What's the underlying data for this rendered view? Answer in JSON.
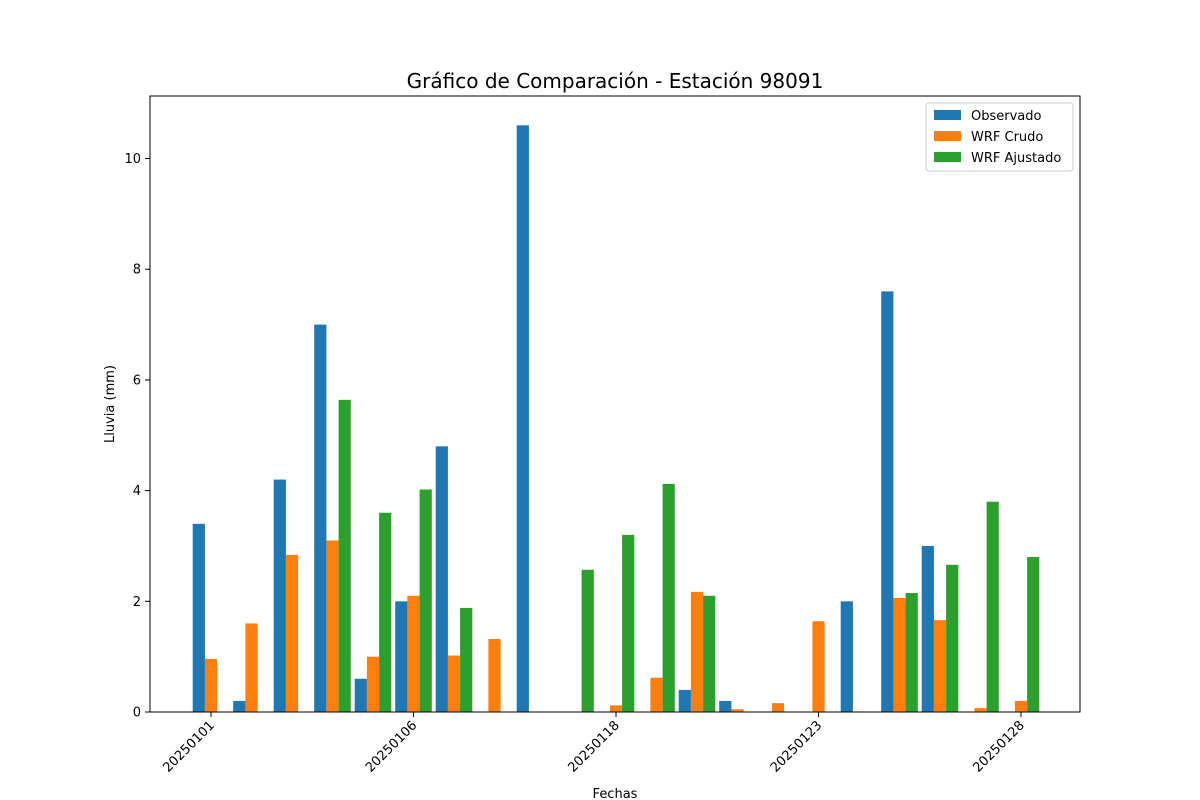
{
  "chart_data": {
    "type": "bar",
    "title": "Gráfico de Comparación - Estación 98091",
    "xlabel": "Fechas",
    "ylabel": "Lluvia (mm)",
    "ylim": [
      0,
      11.13
    ],
    "yticks": [
      0,
      2,
      4,
      6,
      8,
      10
    ],
    "xticks": [
      {
        "index": 0,
        "label": "20250101"
      },
      {
        "index": 5,
        "label": "20250106"
      },
      {
        "index": 10,
        "label": "20250118"
      },
      {
        "index": 15,
        "label": "20250123"
      },
      {
        "index": 20,
        "label": "20250128"
      }
    ],
    "legend_position": "top-right",
    "grid": false,
    "series": [
      {
        "name": "Observado",
        "color": "#1f77b4",
        "values": [
          3.4,
          0.2,
          4.2,
          7.0,
          0.6,
          2.0,
          4.8,
          0.0,
          10.6,
          0.0,
          0.0,
          0.0,
          0.4,
          0.2,
          0.0,
          0.0,
          2.0,
          7.6,
          3.0,
          0.0,
          0.0,
          0.0
        ]
      },
      {
        "name": "WRF Crudo",
        "color": "#ff7f0e",
        "values": [
          0.96,
          1.6,
          2.84,
          3.1,
          1.0,
          2.1,
          1.02,
          1.32,
          0.0,
          0.0,
          0.12,
          0.62,
          2.17,
          0.05,
          0.16,
          1.64,
          0.01,
          2.06,
          1.66,
          0.07,
          0.2,
          0.0
        ]
      },
      {
        "name": "WRF Ajustado",
        "color": "#2ca02c",
        "values": [
          0.0,
          0.0,
          0.0,
          5.64,
          3.6,
          4.02,
          1.88,
          0.0,
          0.0,
          2.57,
          3.2,
          4.12,
          2.1,
          0.0,
          0.0,
          0.0,
          0.0,
          2.15,
          2.66,
          3.8,
          2.8,
          0.0
        ]
      }
    ]
  }
}
